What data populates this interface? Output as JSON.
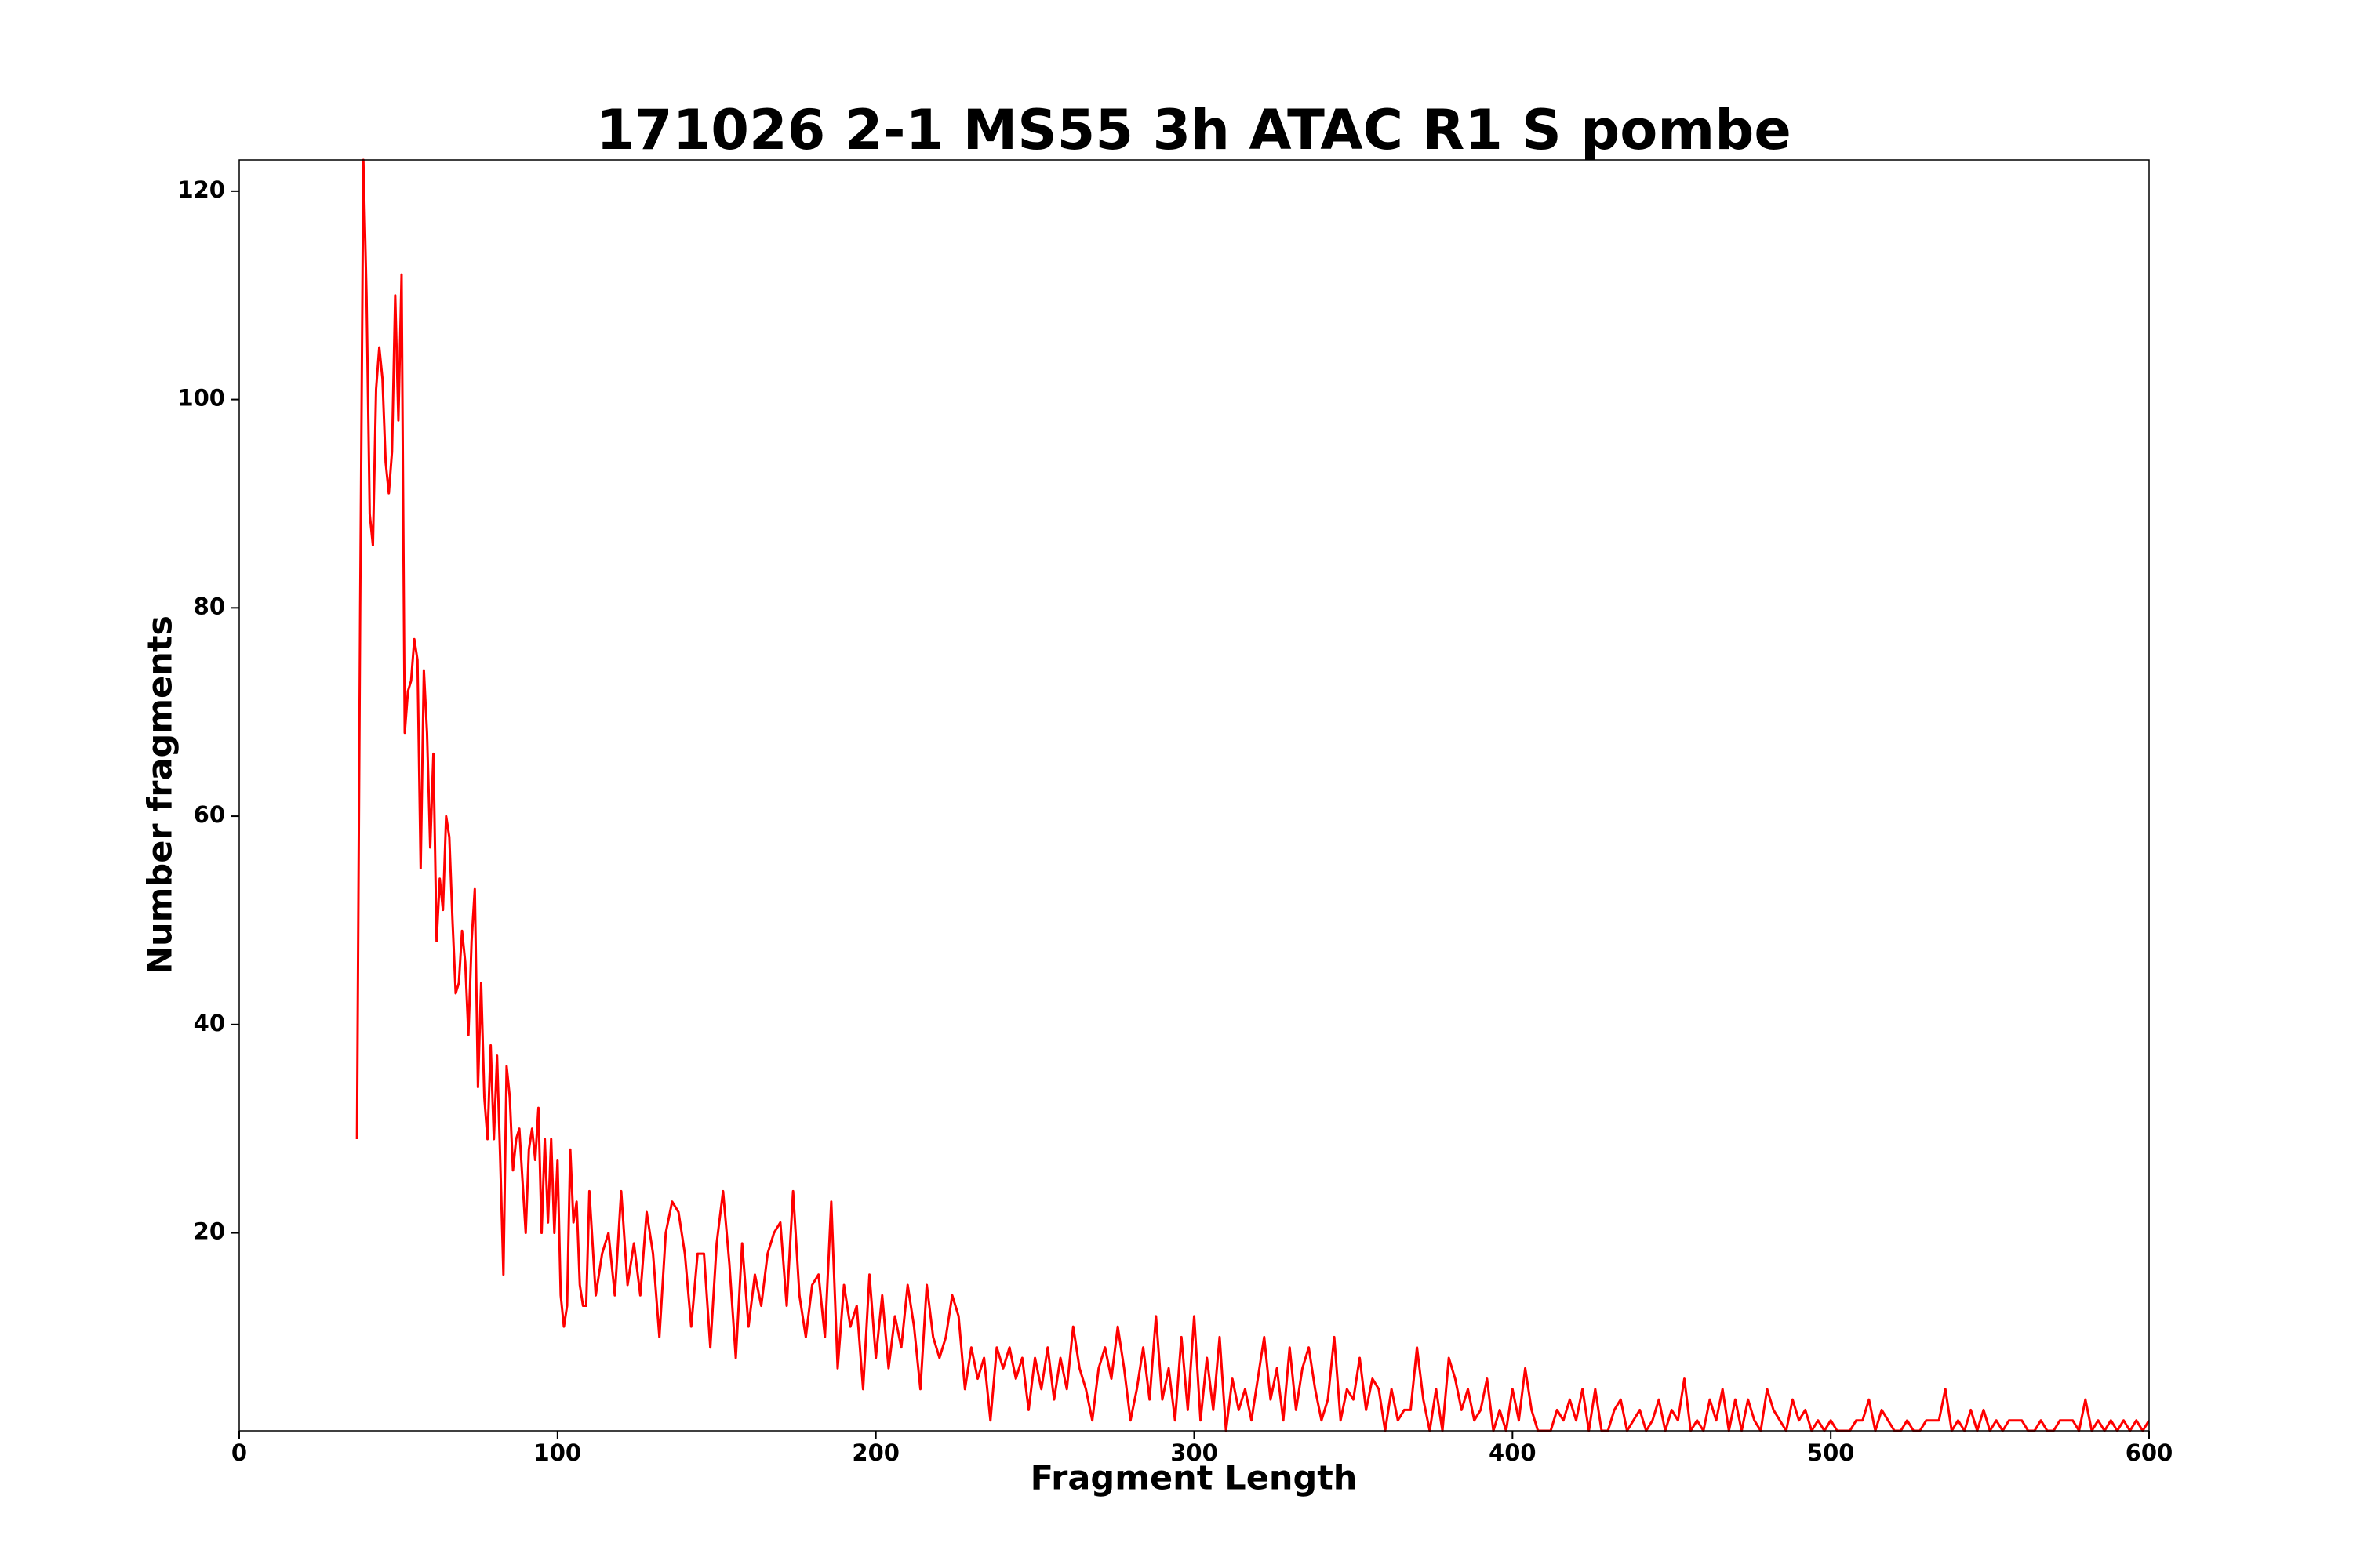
{
  "chart_data": {
    "type": "line",
    "title": "171026 2-1 MS55 3h ATAC R1 S pombe",
    "x_label": "Fragment Length",
    "y_label": "Number fragments",
    "xlim": [
      0,
      600
    ],
    "ylim": [
      1,
      123
    ],
    "xticks": [
      0,
      100,
      200,
      300,
      400,
      500,
      600
    ],
    "yticks": [
      20,
      40,
      60,
      80,
      100,
      120
    ],
    "grid": false,
    "series": [
      {
        "color": "#ff0000",
        "x": [
          37,
          38,
          39,
          40,
          41,
          42,
          43,
          44,
          45,
          46,
          47,
          48,
          49,
          50,
          51,
          52,
          53,
          54,
          55,
          56,
          57,
          58,
          59,
          60,
          61,
          62,
          63,
          64,
          65,
          66,
          67,
          68,
          69,
          70,
          71,
          72,
          73,
          74,
          75,
          76,
          77,
          78,
          79,
          80,
          81,
          82,
          83,
          84,
          85,
          86,
          87,
          88,
          89,
          90,
          91,
          92,
          93,
          94,
          95,
          96,
          97,
          98,
          99,
          100,
          101,
          102,
          103,
          104,
          105,
          106,
          107,
          108,
          109,
          110,
          112,
          114,
          116,
          118,
          120,
          122,
          124,
          126,
          128,
          130,
          132,
          134,
          136,
          138,
          140,
          142,
          144,
          146,
          148,
          150,
          152,
          154,
          156,
          158,
          160,
          162,
          164,
          166,
          168,
          170,
          172,
          174,
          176,
          178,
          180,
          182,
          184,
          186,
          188,
          190,
          192,
          194,
          196,
          198,
          200,
          202,
          204,
          206,
          208,
          210,
          212,
          214,
          216,
          218,
          220,
          222,
          224,
          226,
          228,
          230,
          232,
          234,
          236,
          238,
          240,
          242,
          244,
          246,
          248,
          250,
          252,
          254,
          256,
          258,
          260,
          262,
          264,
          266,
          268,
          270,
          272,
          274,
          276,
          278,
          280,
          282,
          284,
          286,
          288,
          290,
          292,
          294,
          296,
          298,
          300,
          302,
          304,
          306,
          308,
          310,
          312,
          314,
          316,
          318,
          320,
          322,
          324,
          326,
          328,
          330,
          332,
          334,
          336,
          338,
          340,
          342,
          344,
          346,
          348,
          350,
          352,
          354,
          356,
          358,
          360,
          362,
          364,
          366,
          368,
          370,
          372,
          374,
          376,
          378,
          380,
          382,
          384,
          386,
          388,
          390,
          392,
          394,
          396,
          398,
          400,
          402,
          404,
          406,
          408,
          410,
          412,
          414,
          416,
          418,
          420,
          422,
          424,
          426,
          428,
          430,
          432,
          434,
          436,
          438,
          440,
          442,
          444,
          446,
          448,
          450,
          452,
          454,
          456,
          458,
          460,
          462,
          464,
          466,
          468,
          470,
          472,
          474,
          476,
          478,
          480,
          482,
          484,
          486,
          488,
          490,
          492,
          494,
          496,
          498,
          500,
          502,
          504,
          506,
          508,
          510,
          512,
          514,
          516,
          518,
          520,
          522,
          524,
          526,
          528,
          530,
          532,
          534,
          536,
          538,
          540,
          542,
          544,
          546,
          548,
          550,
          552,
          554,
          556,
          558,
          560,
          562,
          564,
          566,
          568,
          570,
          572,
          574,
          576,
          578,
          580,
          582,
          584,
          586,
          588,
          590,
          592,
          594,
          596,
          598,
          600
        ],
        "values": [
          29,
          80,
          123,
          110,
          89,
          86,
          101,
          105,
          102,
          94,
          91,
          95,
          110,
          98,
          112,
          68,
          72,
          73,
          77,
          75,
          55,
          74,
          68,
          57,
          66,
          48,
          54,
          51,
          60,
          58,
          50,
          43,
          44,
          49,
          46,
          39,
          48,
          53,
          34,
          44,
          33,
          29,
          38,
          29,
          37,
          27,
          16,
          36,
          33,
          26,
          29,
          30,
          25,
          20,
          28,
          30,
          27,
          32,
          20,
          29,
          21,
          29,
          20,
          27,
          14,
          11,
          13,
          28,
          21,
          23,
          15,
          13,
          13,
          24,
          14,
          18,
          20,
          14,
          24,
          15,
          19,
          14,
          22,
          18,
          10,
          20,
          23,
          22,
          18,
          11,
          18,
          18,
          9,
          19,
          24,
          17,
          8,
          19,
          11,
          16,
          13,
          18,
          20,
          21,
          13,
          24,
          14,
          10,
          15,
          16,
          10,
          23,
          7,
          15,
          11,
          13,
          5,
          16,
          8,
          14,
          7,
          12,
          9,
          15,
          11,
          5,
          15,
          10,
          8,
          10,
          14,
          12,
          5,
          9,
          6,
          8,
          2,
          9,
          7,
          9,
          6,
          8,
          3,
          8,
          5,
          9,
          4,
          8,
          5,
          11,
          7,
          5,
          2,
          7,
          9,
          6,
          11,
          7,
          2,
          5,
          9,
          4,
          12,
          4,
          7,
          2,
          10,
          3,
          12,
          2,
          8,
          3,
          10,
          1,
          6,
          3,
          5,
          2,
          6,
          10,
          4,
          7,
          2,
          9,
          3,
          7,
          9,
          5,
          2,
          4,
          10,
          2,
          5,
          4,
          8,
          3,
          6,
          5,
          1,
          5,
          2,
          3,
          3,
          9,
          4,
          1,
          5,
          1,
          8,
          6,
          3,
          5,
          2,
          3,
          6,
          1,
          3,
          1,
          5,
          2,
          7,
          3,
          1,
          1,
          1,
          3,
          2,
          4,
          2,
          5,
          1,
          5,
          1,
          1,
          3,
          4,
          1,
          2,
          3,
          1,
          2,
          4,
          1,
          3,
          2,
          6,
          1,
          2,
          1,
          4,
          2,
          5,
          1,
          4,
          1,
          4,
          2,
          1,
          5,
          3,
          2,
          1,
          4,
          2,
          3,
          1,
          2,
          1,
          2,
          1,
          1,
          1,
          2,
          2,
          4,
          1,
          3,
          2,
          1,
          1,
          2,
          1,
          1,
          2,
          2,
          2,
          5,
          1,
          2,
          1,
          3,
          1,
          3,
          1,
          2,
          1,
          2,
          2,
          2,
          1,
          1,
          2,
          1,
          1,
          2,
          2,
          2,
          1,
          4,
          1,
          2,
          1,
          2,
          1,
          2,
          1,
          2,
          1,
          2
        ]
      }
    ]
  }
}
